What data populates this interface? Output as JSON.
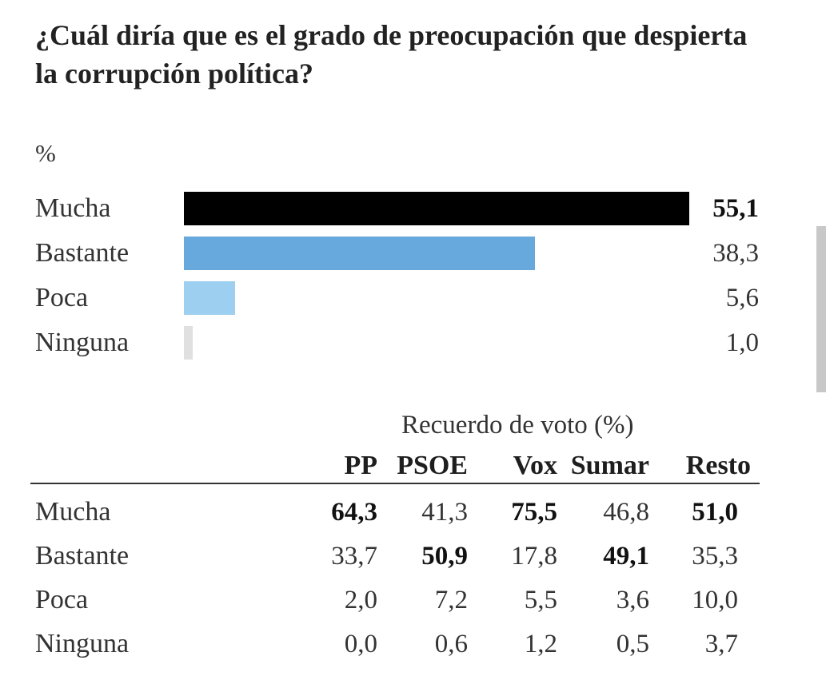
{
  "title": "¿Cuál diría que es el grado de preocupación que despierta la corrupción política?",
  "unit": "%",
  "chart_data": {
    "type": "bar",
    "orientation": "horizontal",
    "title": "¿Cuál diría que es el grado de preocupación que despierta la corrupción política?",
    "ylabel": "%",
    "categories": [
      "Mucha",
      "Bastante",
      "Poca",
      "Ninguna"
    ],
    "values": [
      55.1,
      38.3,
      5.6,
      1.0
    ],
    "value_labels": [
      "55,1",
      "38,3",
      "5,6",
      "1,0"
    ],
    "colors": [
      "#000000",
      "#67a9dc",
      "#9dcff0",
      "#e0e0e0"
    ],
    "xlim": [
      0,
      55.1
    ],
    "grid": false,
    "legend": "none"
  },
  "table": {
    "caption": "Recuerdo de voto (%)",
    "columns": [
      "PP",
      "PSOE",
      "Vox",
      "Sumar",
      "Resto"
    ],
    "rows": [
      {
        "label": "Mucha",
        "values": [
          "64,3",
          "41,3",
          "75,5",
          "46,8",
          "51,0"
        ],
        "bold": [
          true,
          false,
          true,
          false,
          true
        ]
      },
      {
        "label": "Bastante",
        "values": [
          "33,7",
          "50,9",
          "17,8",
          "49,1",
          "35,3"
        ],
        "bold": [
          false,
          true,
          false,
          true,
          false
        ]
      },
      {
        "label": "Poca",
        "values": [
          "2,0",
          "7,2",
          "5,5",
          "3,6",
          "10,0"
        ],
        "bold": [
          false,
          false,
          false,
          false,
          false
        ]
      },
      {
        "label": "Ninguna",
        "values": [
          "0,0",
          "0,6",
          "1,2",
          "0,5",
          "3,7"
        ],
        "bold": [
          false,
          false,
          false,
          false,
          false
        ]
      }
    ]
  }
}
